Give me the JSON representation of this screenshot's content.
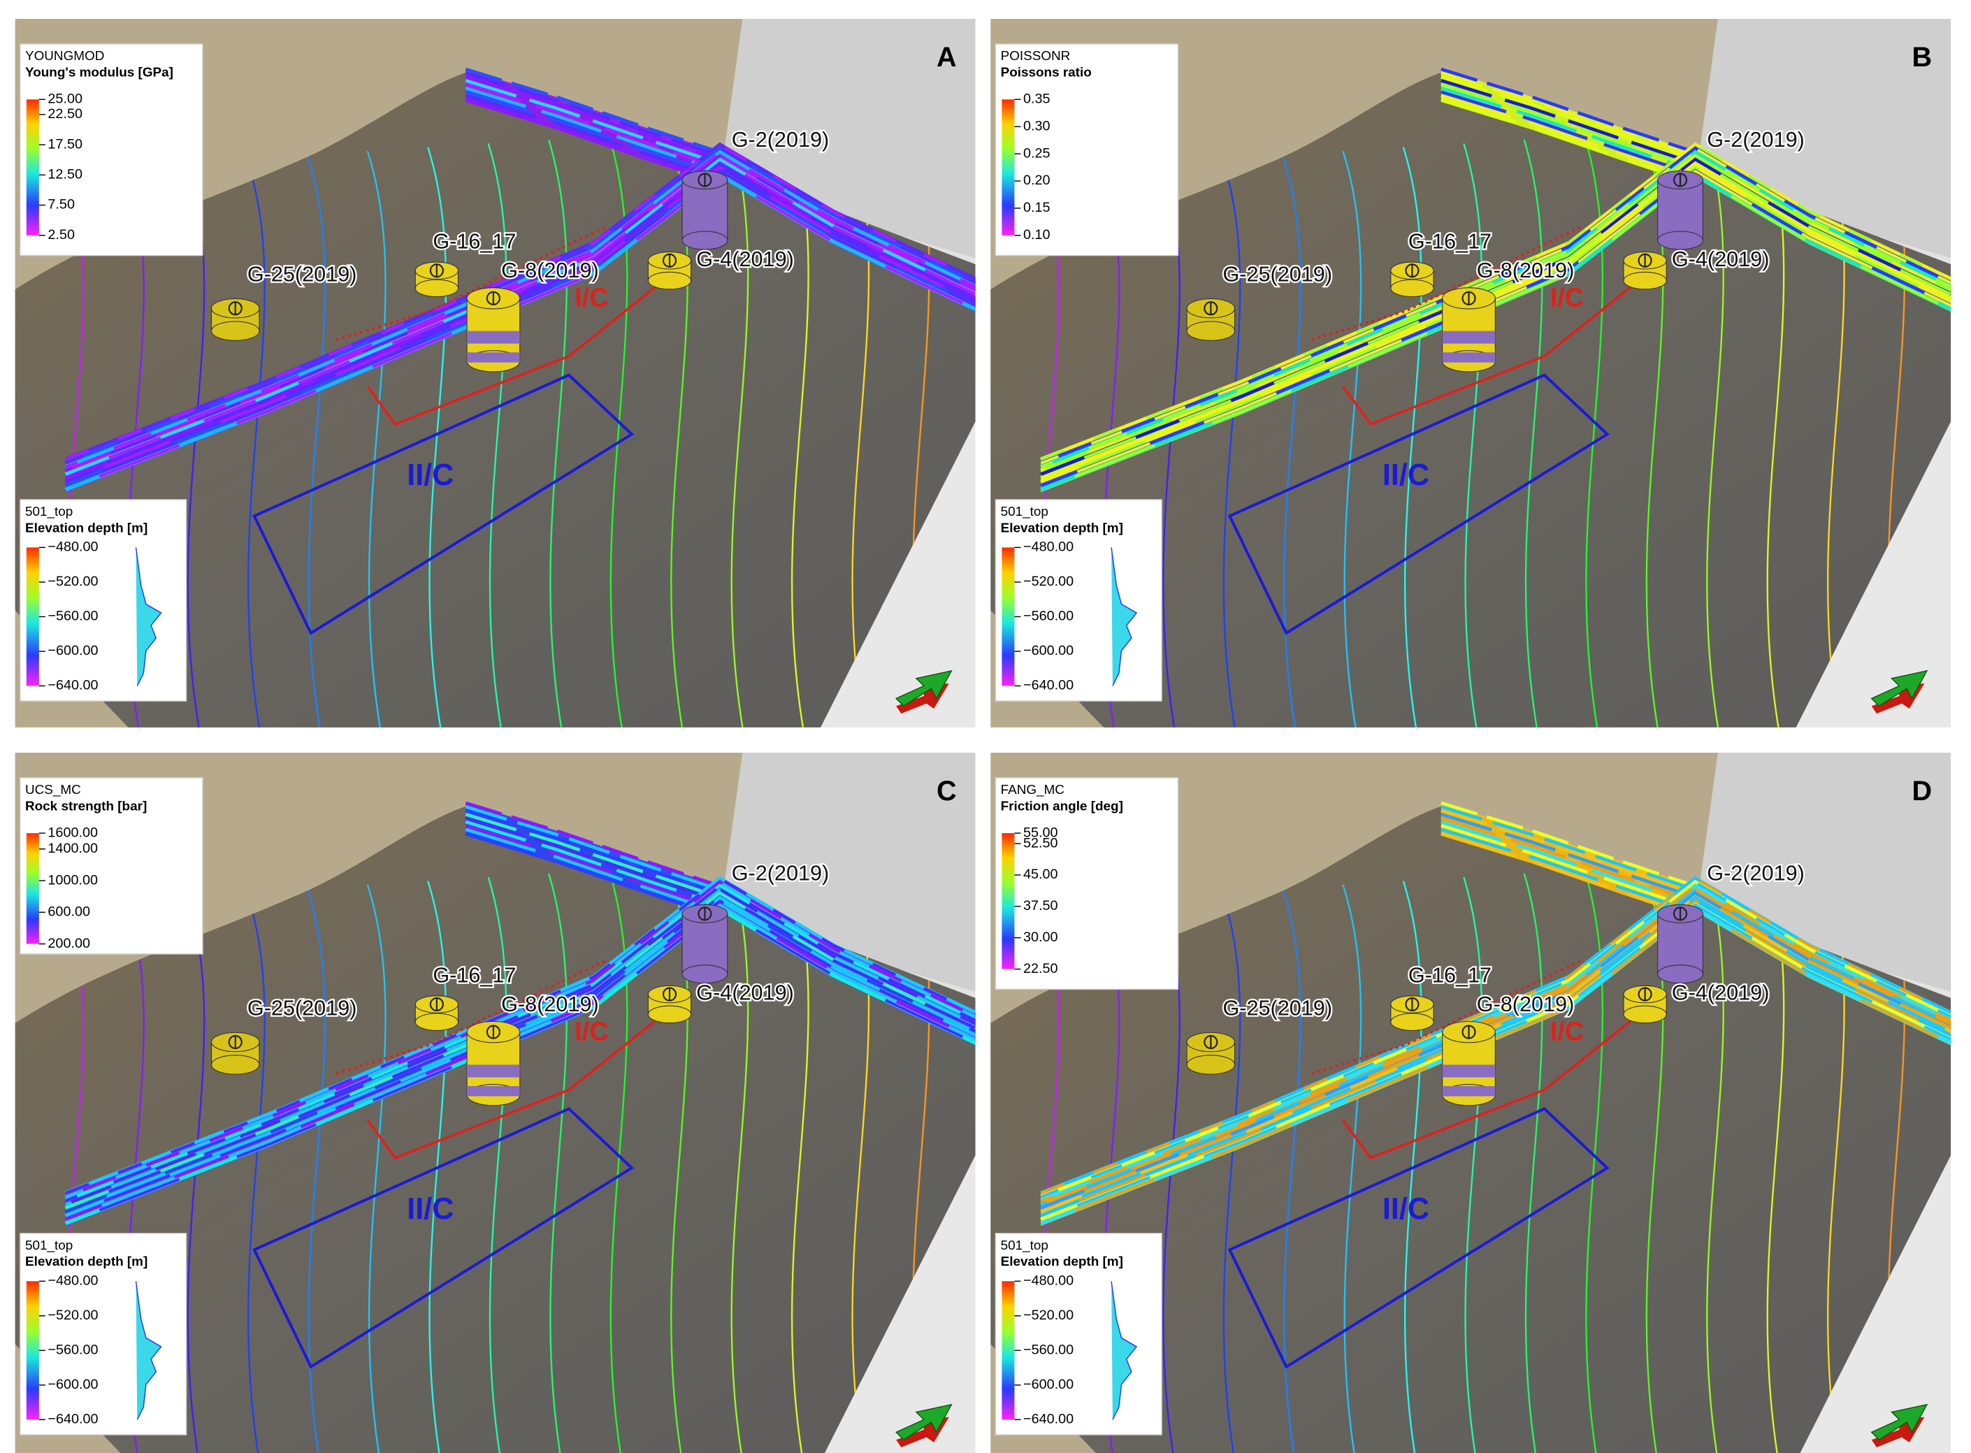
{
  "panels": [
    {
      "letter": "A",
      "property": {
        "name": "YOUNGMOD",
        "label": "Young's modulus [GPa]",
        "ticks": [
          {
            "value": 25,
            "label": "25.00"
          },
          {
            "value": 22.5,
            "label": "22.50"
          },
          {
            "value": 17.5,
            "label": "17.50"
          },
          {
            "value": 12.5,
            "label": "12.50"
          },
          {
            "value": 7.5,
            "label": "7.50"
          },
          {
            "value": 2.5,
            "label": "2.50"
          }
        ]
      },
      "surface": {
        "name": "501_top",
        "label": "Elevation depth [m]",
        "ticks": [
          {
            "value": -480,
            "label": "−480.00"
          },
          {
            "value": -520,
            "label": "−520.00"
          },
          {
            "value": -560,
            "label": "−560.00"
          },
          {
            "value": -600,
            "label": "−600.00"
          },
          {
            "value": -640,
            "label": "−640.00"
          }
        ]
      },
      "wells": [
        "G-2(2019)",
        "G-16_17",
        "G-8(2019)",
        "G-25(2019)",
        "G-4(2019)"
      ],
      "zones": [
        "I/C",
        "II/C"
      ]
    },
    {
      "letter": "B",
      "property": {
        "name": "POISSONR",
        "label": "Poissons ratio",
        "ticks": [
          {
            "value": 0.35,
            "label": "0.35"
          },
          {
            "value": 0.3,
            "label": "0.30"
          },
          {
            "value": 0.25,
            "label": "0.25"
          },
          {
            "value": 0.2,
            "label": "0.20"
          },
          {
            "value": 0.15,
            "label": "0.15"
          },
          {
            "value": 0.1,
            "label": "0.10"
          }
        ]
      },
      "surface": {
        "name": "501_top",
        "label": "Elevation depth [m]",
        "ticks": [
          {
            "value": -480,
            "label": "−480.00"
          },
          {
            "value": -520,
            "label": "−520.00"
          },
          {
            "value": -560,
            "label": "−560.00"
          },
          {
            "value": -600,
            "label": "−600.00"
          },
          {
            "value": -640,
            "label": "−640.00"
          }
        ]
      },
      "wells": [
        "G-2(2019)",
        "G-16_17",
        "G-8(2019)",
        "G-25(2019)",
        "G-4(2019)"
      ],
      "zones": [
        "I/C",
        "II/C"
      ]
    },
    {
      "letter": "C",
      "property": {
        "name": "UCS_MC",
        "label": "Rock strength [bar]",
        "ticks": [
          {
            "value": 1600,
            "label": "1600.00"
          },
          {
            "value": 1400,
            "label": "1400.00"
          },
          {
            "value": 1000,
            "label": "1000.00"
          },
          {
            "value": 600,
            "label": "600.00"
          },
          {
            "value": 200,
            "label": "200.00"
          }
        ]
      },
      "surface": {
        "name": "501_top",
        "label": "Elevation depth [m]",
        "ticks": [
          {
            "value": -480,
            "label": "−480.00"
          },
          {
            "value": -520,
            "label": "−520.00"
          },
          {
            "value": -560,
            "label": "−560.00"
          },
          {
            "value": -600,
            "label": "−600.00"
          },
          {
            "value": -640,
            "label": "−640.00"
          }
        ]
      },
      "wells": [
        "G-2(2019)",
        "G-16_17",
        "G-8(2019)",
        "G-25(2019)",
        "G-4(2019)"
      ],
      "zones": [
        "I/C",
        "II/C"
      ]
    },
    {
      "letter": "D",
      "property": {
        "name": "FANG_MC",
        "label": "Friction angle [deg]",
        "ticks": [
          {
            "value": 55,
            "label": "55.00"
          },
          {
            "value": 52.5,
            "label": "52.50"
          },
          {
            "value": 45,
            "label": "45.00"
          },
          {
            "value": 37.5,
            "label": "37.50"
          },
          {
            "value": 30,
            "label": "30.00"
          },
          {
            "value": 22.5,
            "label": "22.50"
          }
        ]
      },
      "surface": {
        "name": "501_top",
        "label": "Elevation depth [m]",
        "ticks": [
          {
            "value": -480,
            "label": "−480.00"
          },
          {
            "value": -520,
            "label": "−520.00"
          },
          {
            "value": -560,
            "label": "−560.00"
          },
          {
            "value": -600,
            "label": "−600.00"
          },
          {
            "value": -640,
            "label": "−640.00"
          }
        ]
      },
      "wells": [
        "G-2(2019)",
        "G-16_17",
        "G-8(2019)",
        "G-25(2019)",
        "G-4(2019)"
      ],
      "zones": [
        "I/C",
        "II/C"
      ]
    }
  ]
}
